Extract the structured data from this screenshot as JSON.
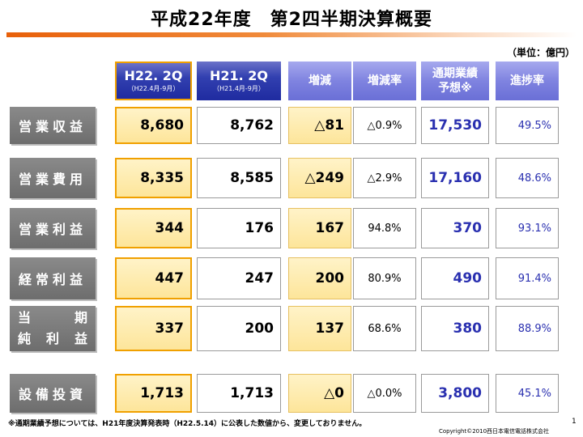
{
  "title": "平成22年度　第2四半期決算概要",
  "unit": "（単位：億円）",
  "headers": {
    "h22": {
      "main": "H22. 2Q",
      "sub": "（H22.4月-9月）"
    },
    "h21": {
      "main": "H21. 2Q",
      "sub": "（H21.4月-9月）"
    },
    "change": "増減",
    "rate": "増減率",
    "forecast_line1": "通期業績",
    "forecast_line2": "予想※",
    "progress": "進捗率"
  },
  "rows": [
    {
      "label": "営業収益",
      "h22": "8,680",
      "h21": "8,762",
      "change": "△81",
      "rate": "△0.9%",
      "forecast": "17,530",
      "progress": "49.5%"
    },
    {
      "label": "営業費用",
      "h22": "8,335",
      "h21": "8,585",
      "change": "△249",
      "rate": "△2.9%",
      "forecast": "17,160",
      "progress": "48.6%"
    },
    {
      "label": "営業利益",
      "h22": "344",
      "h21": "176",
      "change": "167",
      "rate": "94.8%",
      "forecast": "370",
      "progress": "93.1%"
    },
    {
      "label": "経常利益",
      "h22": "447",
      "h21": "247",
      "change": "200",
      "rate": "80.9%",
      "forecast": "490",
      "progress": "91.4%"
    },
    {
      "label_line1": [
        "当",
        "期"
      ],
      "label_line2": [
        "純",
        "利",
        "益"
      ],
      "h22": "337",
      "h21": "200",
      "change": "137",
      "rate": "68.6%",
      "forecast": "380",
      "progress": "88.9%"
    },
    {
      "label": "設備投資",
      "h22": "1,713",
      "h21": "1,713",
      "change": "△0",
      "rate": "△0.0%",
      "forecast": "3,800",
      "progress": "45.1%"
    }
  ],
  "footnote": "※通期業績予想については、H21年度決算発表時（H22.5.14）に公表した数値から、変更しておりません。",
  "copyright": "Copyright©2010西日本電信電話株式会社",
  "page_number": "1"
}
